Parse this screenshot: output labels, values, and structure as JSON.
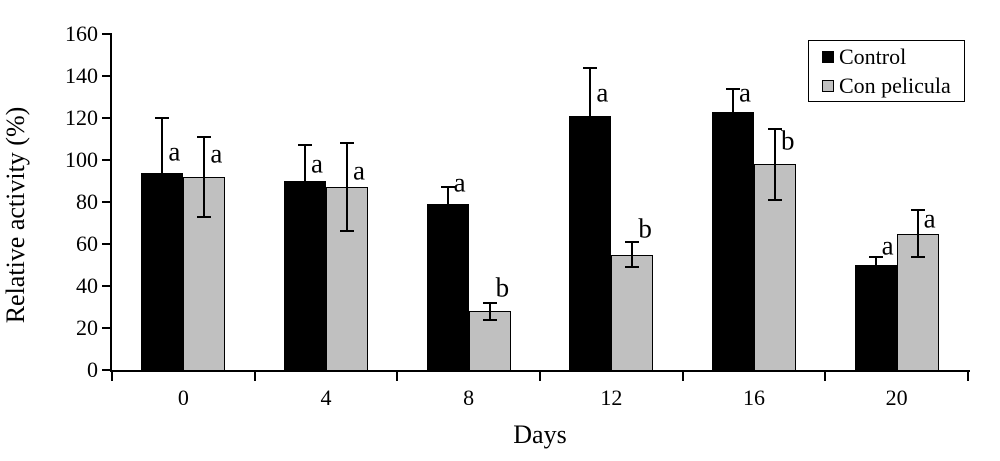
{
  "chart_data": {
    "type": "bar",
    "title": "",
    "xlabel": "Days",
    "ylabel": "Relative activity (%)",
    "ylim": [
      0,
      160
    ],
    "yticks": [
      0,
      20,
      40,
      60,
      80,
      100,
      120,
      140,
      160
    ],
    "categories": [
      "0",
      "4",
      "8",
      "12",
      "16",
      "20"
    ],
    "grid": false,
    "error_bars": true,
    "legend": {
      "position": "top-right"
    },
    "colors": {
      "axis": "#000000",
      "background": "#ffffff"
    },
    "series": [
      {
        "name": "Control",
        "color": "#000000",
        "values": [
          94,
          90,
          79,
          121,
          123,
          50
        ],
        "errors": [
          26,
          17,
          8,
          23,
          11,
          4
        ],
        "sig_letters": [
          "a",
          "a",
          "a",
          "a",
          "a",
          "a"
        ],
        "letter_y": [
          104,
          98,
          89,
          132,
          132,
          59
        ]
      },
      {
        "name": "Con pelicula",
        "color": "#c0c0c0",
        "values": [
          92,
          87,
          28,
          55,
          98,
          65
        ],
        "errors": [
          19,
          21,
          4,
          6,
          17,
          11
        ],
        "sig_letters": [
          "a",
          "a",
          "b",
          "b",
          "b",
          "a"
        ],
        "letter_y": [
          103,
          95,
          39,
          67,
          109,
          72
        ]
      }
    ]
  }
}
